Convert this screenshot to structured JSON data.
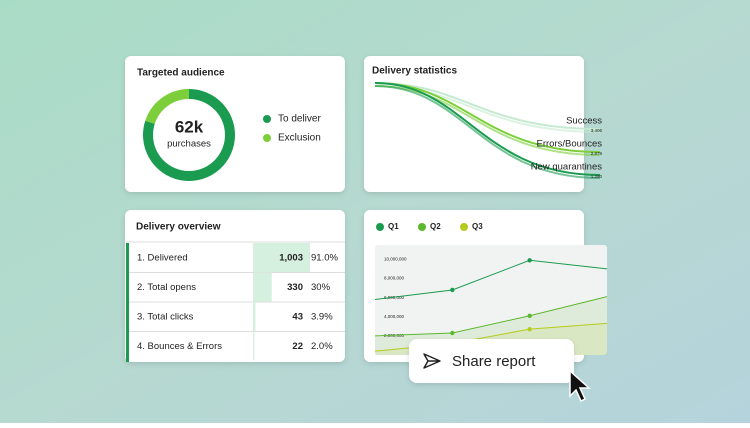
{
  "audience": {
    "type": "pie",
    "title": "Targeted audience",
    "center_value": "62k",
    "center_label": "purchases",
    "series": [
      {
        "name": "To deliver",
        "color": "#1a9b50",
        "value": 80
      },
      {
        "name": "Exclusion",
        "color": "#7ccf3a",
        "value": 20
      }
    ]
  },
  "delivery_statistics": {
    "title": "Delivery statistics",
    "flows": [
      {
        "name": "Success",
        "amount": "3,406",
        "color": "#c5ead0"
      },
      {
        "name": "Errors/Bounces",
        "amount": "2,879",
        "color": "#7ccf3a"
      },
      {
        "name": "New quarantines",
        "amount": "1,290",
        "color": "#1a9b50"
      }
    ]
  },
  "delivery_overview": {
    "title": "Delivery overview",
    "rows": [
      "1. Delivered",
      "2. Total opens",
      "3. Total clicks",
      "4. Bounces & Errors"
    ],
    "values": [
      1003,
      330,
      43,
      22
    ],
    "value_labels": [
      "1,003",
      "330",
      "43",
      "22"
    ],
    "percents": [
      "91.0%",
      "30%",
      "3.9%",
      "2.0%"
    ],
    "color": "#d6f0df"
  },
  "quarter_chart": {
    "type": "line",
    "categories": [
      null,
      null,
      null,
      null
    ],
    "series": [
      {
        "name": "Q1",
        "color": "#1a9b50",
        "values": [
          5800000,
          6800000,
          9900000,
          9000000
        ]
      },
      {
        "name": "Q2",
        "color": "#5cb82e",
        "values": [
          2000000,
          2300000,
          4100000,
          6100000
        ]
      },
      {
        "name": "Q3",
        "color": "#b5cc1e",
        "values": [
          400000,
          1200000,
          2700000,
          3300000
        ]
      }
    ],
    "ylim": [
      0,
      11500000
    ],
    "yticks": [
      {
        "value": 2000000,
        "label": "2,000,000"
      },
      {
        "value": 4000000,
        "label": "4,000,000"
      },
      {
        "value": 6000000,
        "label": "6,000,000"
      },
      {
        "value": 8000000,
        "label": "8,000,000"
      },
      {
        "value": 10000000,
        "label": "10,000,000"
      }
    ]
  },
  "share_button": {
    "label": "Share report"
  }
}
